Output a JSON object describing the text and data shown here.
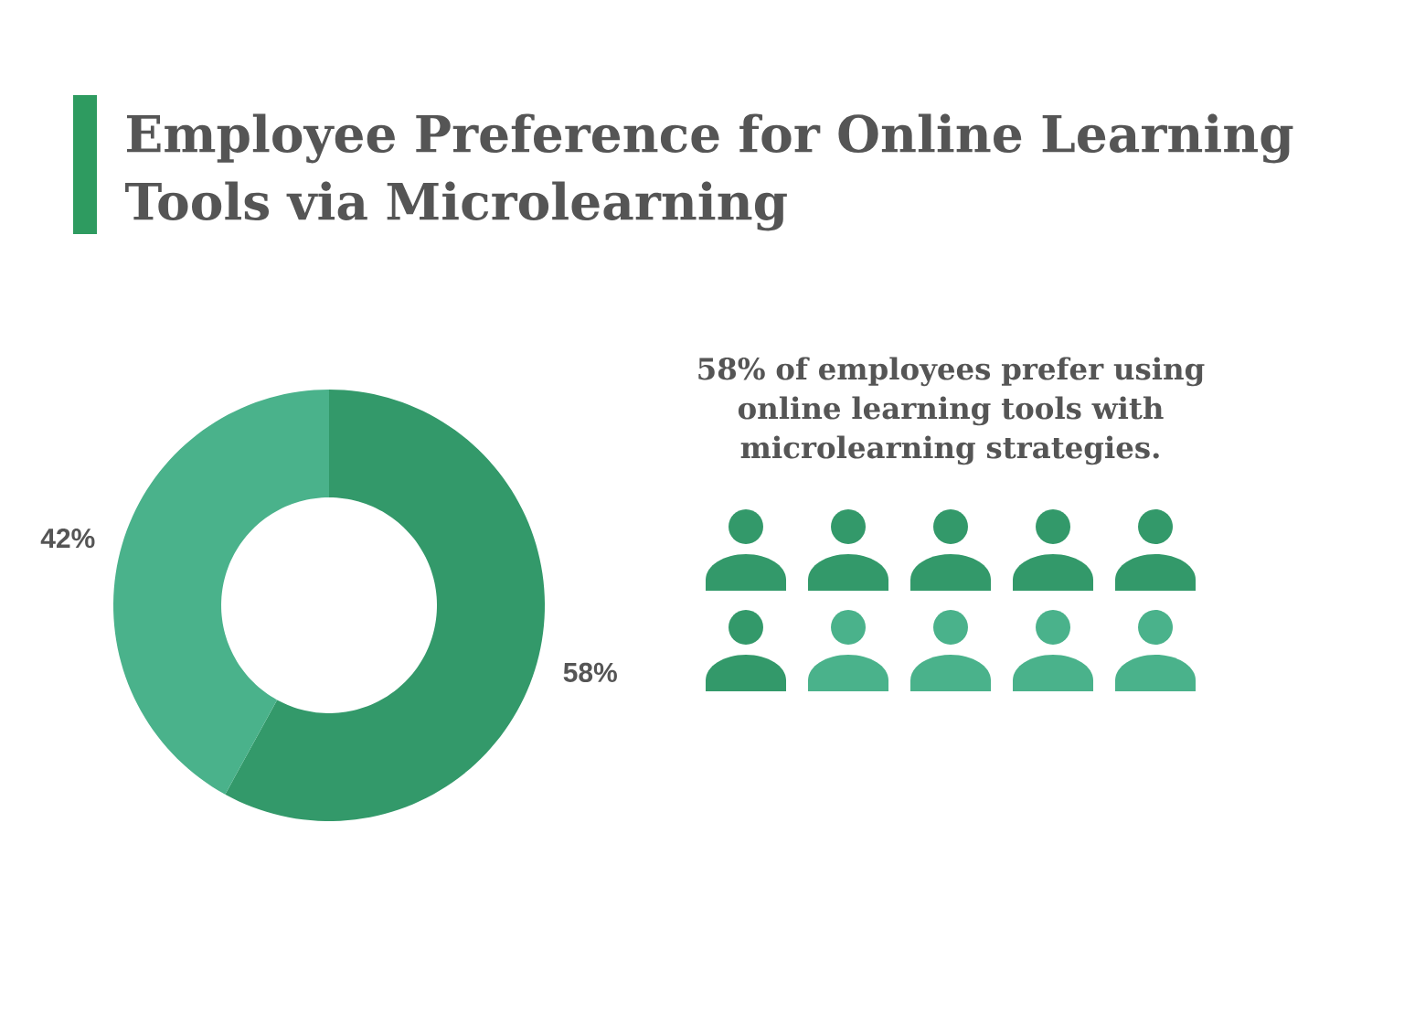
{
  "chart_data": {
    "type": "donut",
    "title": "Employee Preference for Online Learning Tools via Microlearning",
    "categories": [
      null,
      null
    ],
    "values": [
      58,
      42
    ],
    "colors": [
      "#33996a",
      "#4ab28b"
    ],
    "value_labels": [
      "58%",
      "42%"
    ],
    "annotations": [
      "58% of employees prefer using online learning tools with microlearning strategies."
    ]
  }
}
